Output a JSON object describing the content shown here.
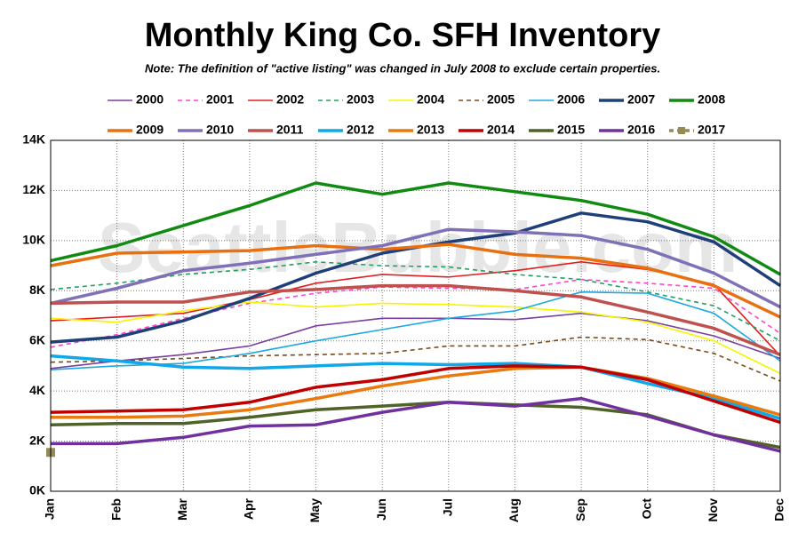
{
  "chart_data": {
    "type": "line",
    "title": "Monthly King Co. SFH Inventory",
    "subtitle": "Note: The definition of \"active listing\" was changed in July 2008 to exclude certain properties.",
    "watermark": "SeattleBubble.com",
    "categories": [
      "Jan",
      "Feb",
      "Mar",
      "Apr",
      "May",
      "Jun",
      "Jul",
      "Aug",
      "Sep",
      "Oct",
      "Nov",
      "Dec"
    ],
    "ylim": [
      0,
      14000
    ],
    "yticks": [
      {
        "value": 0,
        "label": "0K"
      },
      {
        "value": 2000,
        "label": "2K"
      },
      {
        "value": 4000,
        "label": "4K"
      },
      {
        "value": 6000,
        "label": "6K"
      },
      {
        "value": 8000,
        "label": "8K"
      },
      {
        "value": 10000,
        "label": "10K"
      },
      {
        "value": 12000,
        "label": "12K"
      },
      {
        "value": 14000,
        "label": "14K"
      }
    ],
    "grid": true,
    "legend": "top",
    "series": [
      {
        "name": "2000",
        "color": "#7b3f9e",
        "values": [
          4900,
          5200,
          5450,
          5800,
          6600,
          6900,
          6900,
          6850,
          7100,
          6800,
          6200,
          5300
        ]
      },
      {
        "name": "2001",
        "color": "#ff44cc",
        "dashed": true,
        "values": [
          5750,
          6250,
          6900,
          7500,
          7900,
          8150,
          8100,
          8050,
          8450,
          8300,
          8100,
          6300
        ]
      },
      {
        "name": "2002",
        "color": "#e02020",
        "values": [
          6800,
          6950,
          7100,
          7650,
          8300,
          8650,
          8550,
          8800,
          9150,
          8850,
          8250,
          5400
        ]
      },
      {
        "name": "2003",
        "color": "#20a060",
        "dashed": true,
        "values": [
          8050,
          8300,
          8650,
          8850,
          9150,
          9000,
          8950,
          8650,
          8450,
          7950,
          7400,
          6000
        ]
      },
      {
        "name": "2004",
        "color": "#f5f500",
        "values": [
          6900,
          6750,
          7200,
          7550,
          7350,
          7500,
          7450,
          7350,
          7150,
          6750,
          6000,
          4700
        ]
      },
      {
        "name": "2005",
        "color": "#7a4a1a",
        "dashed": true,
        "values": [
          5150,
          5200,
          5300,
          5400,
          5450,
          5500,
          5800,
          5800,
          6150,
          6050,
          5500,
          4400
        ]
      },
      {
        "name": "2006",
        "color": "#1ea8e0",
        "values": [
          4850,
          5000,
          5100,
          5500,
          6000,
          6450,
          6900,
          7200,
          7950,
          7900,
          7100,
          5200
        ]
      },
      {
        "name": "2007",
        "color": "#1f3f7a",
        "bold": true,
        "values": [
          5950,
          6150,
          6800,
          7700,
          8700,
          9500,
          9950,
          10300,
          11100,
          10750,
          9950,
          8200
        ]
      },
      {
        "name": "2008",
        "color": "#108a10",
        "bold": true,
        "values": [
          9200,
          9800,
          10600,
          11400,
          12300,
          11850,
          12300,
          11950,
          11600,
          11050,
          10150,
          8650
        ]
      },
      {
        "name": "2009",
        "color": "#e87010",
        "bold": true,
        "values": [
          9000,
          9500,
          9550,
          9600,
          9800,
          9650,
          9850,
          9450,
          9300,
          8900,
          8200,
          6950
        ]
      },
      {
        "name": "2010",
        "color": "#8070b8",
        "bold": true,
        "values": [
          7500,
          8100,
          8800,
          9100,
          9450,
          9800,
          10450,
          10350,
          10200,
          9650,
          8700,
          7350
        ]
      },
      {
        "name": "2011",
        "color": "#c0504d",
        "bold": true,
        "values": [
          7500,
          7550,
          7550,
          7950,
          8050,
          8200,
          8200,
          8000,
          7750,
          7150,
          6500,
          5450
        ]
      },
      {
        "name": "2012",
        "color": "#10a8e8",
        "bold": true,
        "values": [
          5400,
          5200,
          4950,
          4900,
          5000,
          5100,
          5050,
          5100,
          4950,
          4300,
          3700,
          2900
        ]
      },
      {
        "name": "2013",
        "color": "#e87a10",
        "bold": true,
        "values": [
          2950,
          2950,
          3000,
          3250,
          3700,
          4200,
          4600,
          4900,
          4950,
          4500,
          3800,
          3050
        ]
      },
      {
        "name": "2014",
        "color": "#c00000",
        "bold": true,
        "values": [
          3150,
          3200,
          3250,
          3550,
          4150,
          4450,
          4900,
          5000,
          4950,
          4450,
          3600,
          2750
        ]
      },
      {
        "name": "2015",
        "color": "#4f6228",
        "bold": true,
        "values": [
          2650,
          2700,
          2700,
          2950,
          3250,
          3400,
          3550,
          3450,
          3350,
          3050,
          2250,
          1750
        ]
      },
      {
        "name": "2016",
        "color": "#7030a0",
        "bold": true,
        "values": [
          1900,
          1900,
          2150,
          2600,
          2650,
          3150,
          3550,
          3400,
          3700,
          3000,
          2250,
          1600
        ]
      },
      {
        "name": "2017",
        "color": "#948a54",
        "bold": true,
        "dashed": true,
        "marker": "square",
        "values": [
          1550,
          null,
          null,
          null,
          null,
          null,
          null,
          null,
          null,
          null,
          null,
          null
        ]
      }
    ]
  }
}
